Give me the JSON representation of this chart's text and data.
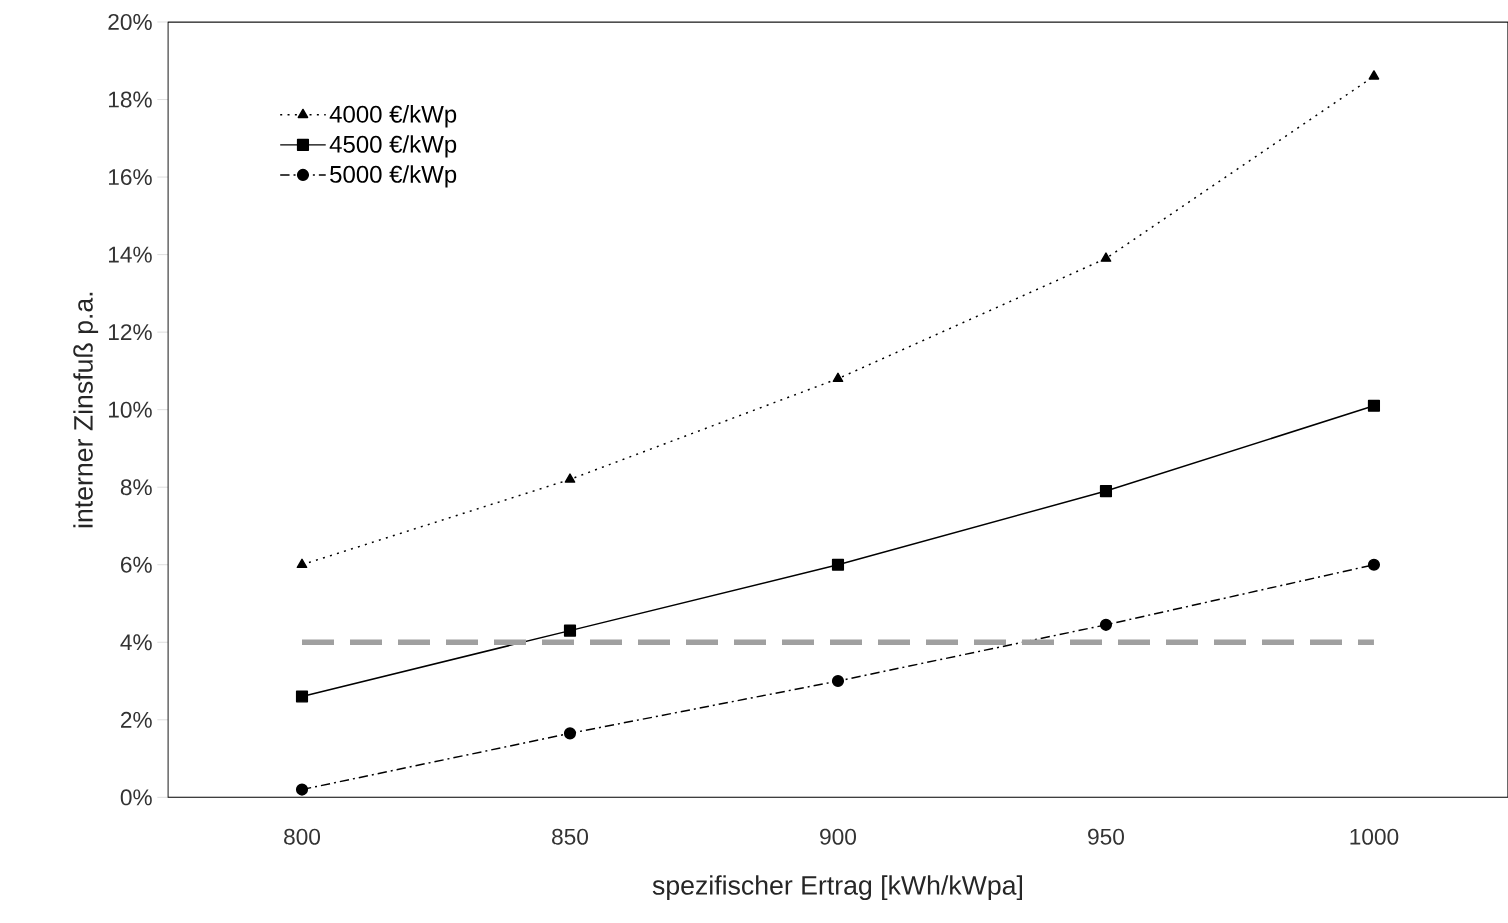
{
  "chart_data": {
    "type": "line",
    "xlabel": "spezifischer Ertrag [kWh/kWpa]",
    "ylabel": "interner Zinsfuß p.a.",
    "categories": [
      "800",
      "850",
      "900",
      "950",
      "1000"
    ],
    "series": [
      {
        "name": "4000 €/kWp",
        "color": "#000000",
        "marker": "triangle",
        "line_style": "dotted",
        "values": [
          6.0,
          8.2,
          10.8,
          13.9,
          18.6
        ]
      },
      {
        "name": "4500 €/kWp",
        "color": "#000000",
        "marker": "square",
        "line_style": "solid",
        "values": [
          2.6,
          4.3,
          6.0,
          7.9,
          10.1
        ]
      },
      {
        "name": "5000 €/kWp",
        "color": "#000000",
        "marker": "circle",
        "line_style": "dashed",
        "values": [
          0.2,
          1.65,
          3.0,
          4.45,
          6.0
        ]
      }
    ],
    "ylim": [
      0,
      20
    ],
    "yticks": [
      {
        "value": 0,
        "label": "0%"
      },
      {
        "value": 2,
        "label": "2%"
      },
      {
        "value": 4,
        "label": "4%"
      },
      {
        "value": 6,
        "label": "6%"
      },
      {
        "value": 8,
        "label": "8%"
      },
      {
        "value": 10,
        "label": "10%"
      },
      {
        "value": 12,
        "label": "12%"
      },
      {
        "value": 14,
        "label": "14%"
      },
      {
        "value": 16,
        "label": "16%"
      },
      {
        "value": 18,
        "label": "18%"
      },
      {
        "value": 20,
        "label": "20%"
      }
    ],
    "ref_lines": [
      {
        "axis": "y",
        "value": 4,
        "color": "#a0a0a0",
        "line_style": "dashed"
      }
    ],
    "grid": false,
    "legend": "top left"
  }
}
